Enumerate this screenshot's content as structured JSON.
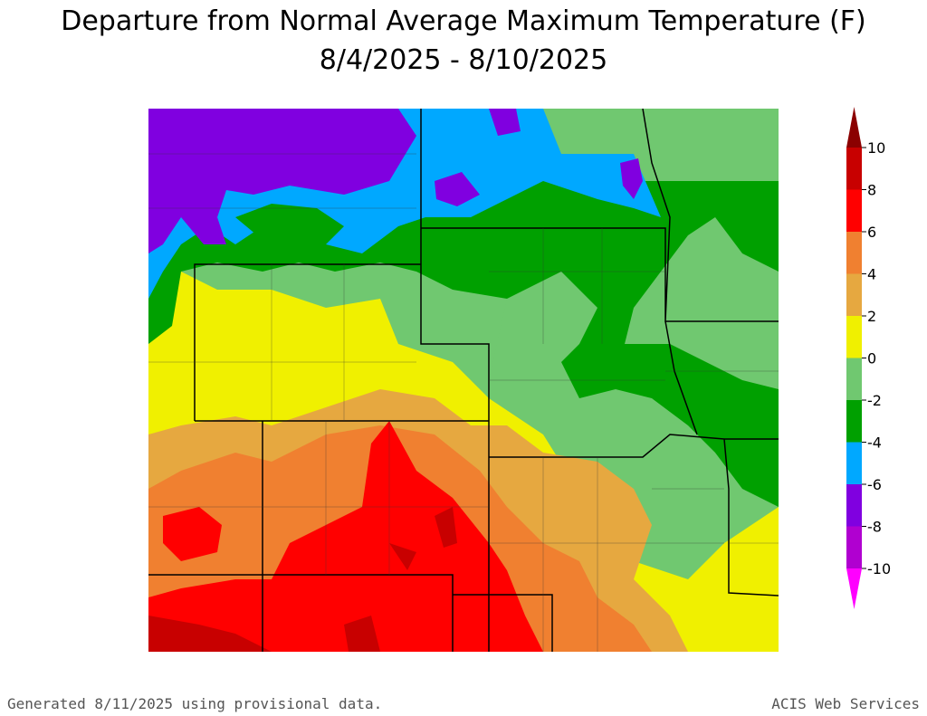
{
  "header": {
    "title": "Departure from Normal Average Maximum Temperature (F)",
    "subtitle": "8/4/2025 - 8/10/2025"
  },
  "legend": {
    "ticks": [
      10,
      8,
      6,
      4,
      2,
      0,
      -2,
      -4,
      -6,
      -8,
      -10
    ],
    "colors": [
      "#8b0000",
      "#c80000",
      "#ff0000",
      "#f08030",
      "#e6a840",
      "#f0f000",
      "#70c870",
      "#00a000",
      "#00a8ff",
      "#8000e0",
      "#b000d0",
      "#ff00ff"
    ]
  },
  "footer": {
    "left": "Generated 8/11/2025 using provisional data.",
    "right": "ACIS Web Services"
  }
}
